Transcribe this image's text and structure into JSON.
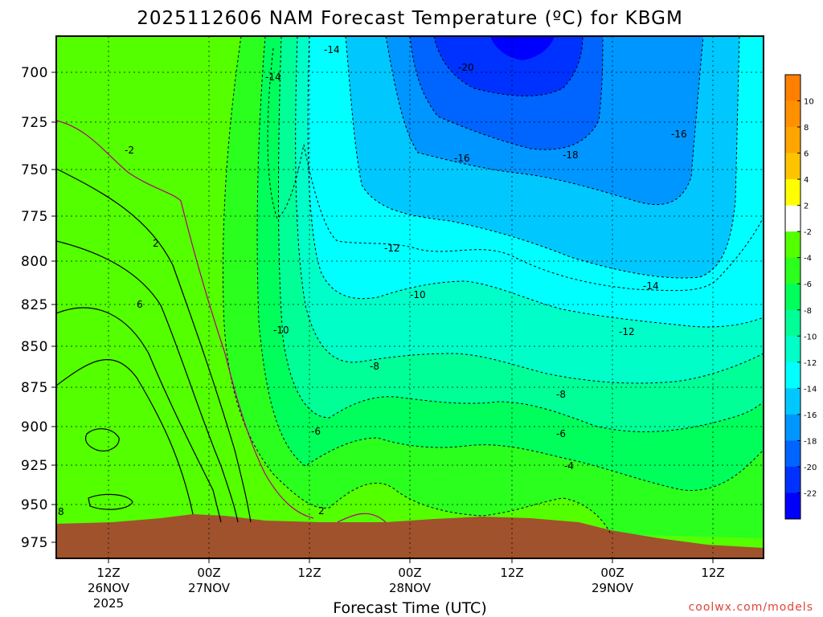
{
  "chart_data": {
    "type": "heatmap",
    "title": "2025112606 NAM Forecast Temperature (ºC) for KBGM",
    "xlabel": "Forecast Time (UTC)",
    "ylabel": "",
    "y_scale": "pressure (inverted)",
    "y_ticks": [
      "700",
      "725",
      "750",
      "775",
      "800",
      "825",
      "850",
      "875",
      "900",
      "925",
      "950",
      "975"
    ],
    "ylim": [
      975,
      680
    ],
    "x_ticks": [
      {
        "line1": "12Z",
        "line2": "26NOV",
        "line3": "2025"
      },
      {
        "line1": "00Z",
        "line2": "27NOV",
        "line3": ""
      },
      {
        "line1": "12Z",
        "line2": "",
        "line3": ""
      },
      {
        "line1": "00Z",
        "line2": "28NOV",
        "line3": ""
      },
      {
        "line1": "12Z",
        "line2": "",
        "line3": ""
      },
      {
        "line1": "00Z",
        "line2": "29NOV",
        "line3": ""
      },
      {
        "line1": "12Z",
        "line2": "",
        "line3": ""
      }
    ],
    "grid": true,
    "colorbar": {
      "position": "right",
      "bins": [
        {
          "from": 10,
          "to": 12,
          "color": "#ff7f00"
        },
        {
          "from": 8,
          "to": 10,
          "color": "#ff9100"
        },
        {
          "from": 6,
          "to": 8,
          "color": "#ffa500"
        },
        {
          "from": 4,
          "to": 6,
          "color": "#ffc400"
        },
        {
          "from": 2,
          "to": 4,
          "color": "#ffff00"
        },
        {
          "from": -2,
          "to": 2,
          "color": "#ffffff"
        },
        {
          "from": -4,
          "to": -2,
          "color": "#54ff00"
        },
        {
          "from": -6,
          "to": -4,
          "color": "#2aff1e"
        },
        {
          "from": -8,
          "to": -6,
          "color": "#00ff5a"
        },
        {
          "from": -10,
          "to": -8,
          "color": "#00ff96"
        },
        {
          "from": -12,
          "to": -10,
          "color": "#00ffc8"
        },
        {
          "from": -14,
          "to": -12,
          "color": "#00ffff"
        },
        {
          "from": -16,
          "to": -14,
          "color": "#00c8ff"
        },
        {
          "from": -18,
          "to": -16,
          "color": "#0096ff"
        },
        {
          "from": -20,
          "to": -18,
          "color": "#0064ff"
        },
        {
          "from": -22,
          "to": -20,
          "color": "#0032ff"
        },
        {
          "from": -24,
          "to": -22,
          "color": "#0000ff"
        }
      ],
      "tick_labels": [
        "10",
        "8",
        "6",
        "4",
        "2",
        "-2",
        "-4",
        "-6",
        "-8",
        "-10",
        "-12",
        "-14",
        "-16",
        "-18",
        "-20",
        "-22"
      ]
    },
    "terrain_color": "#a0522d",
    "contour_labels": [
      "-14",
      "-14",
      "-20",
      "-16",
      "-18",
      "-16",
      "-2",
      "-12",
      "-14",
      "-12",
      "-10",
      "-10",
      "-8",
      "-8",
      "-6",
      "-6",
      "-4",
      "2",
      "6",
      "2",
      "8"
    ]
  },
  "credit": "coolwx.com/models"
}
